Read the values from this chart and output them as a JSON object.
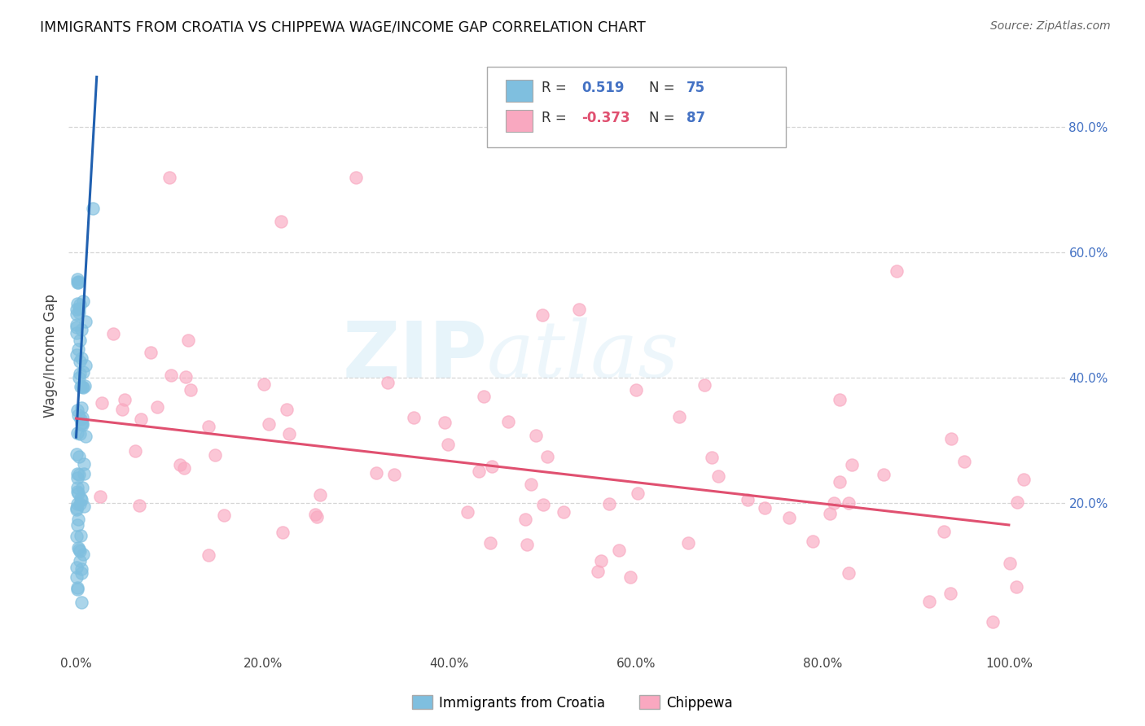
{
  "title": "IMMIGRANTS FROM CROATIA VS CHIPPEWA WAGE/INCOME GAP CORRELATION CHART",
  "source": "Source: ZipAtlas.com",
  "ylabel": "Wage/Income Gap",
  "series1_color": "#7fbfdf",
  "series2_color": "#f9a8c0",
  "trendline1_color": "#2060b0",
  "trendline2_color": "#e05070",
  "r1": 0.519,
  "n1": 75,
  "r2": -0.373,
  "n2": 87,
  "background_color": "#ffffff",
  "grid_color": "#cccccc",
  "series1_label": "Immigrants from Croatia",
  "series2_label": "Chippewa",
  "trendline1_start_x": 0.0,
  "trendline1_end_x": 0.022,
  "trendline1_start_y": 0.305,
  "trendline1_end_y": 0.88,
  "trendline2_start_x": 0.0,
  "trendline2_end_x": 1.0,
  "trendline2_start_y": 0.335,
  "trendline2_end_y": 0.165,
  "ylim_min": -0.04,
  "ylim_max": 0.91,
  "xlim_min": -0.008,
  "xlim_max": 1.06
}
